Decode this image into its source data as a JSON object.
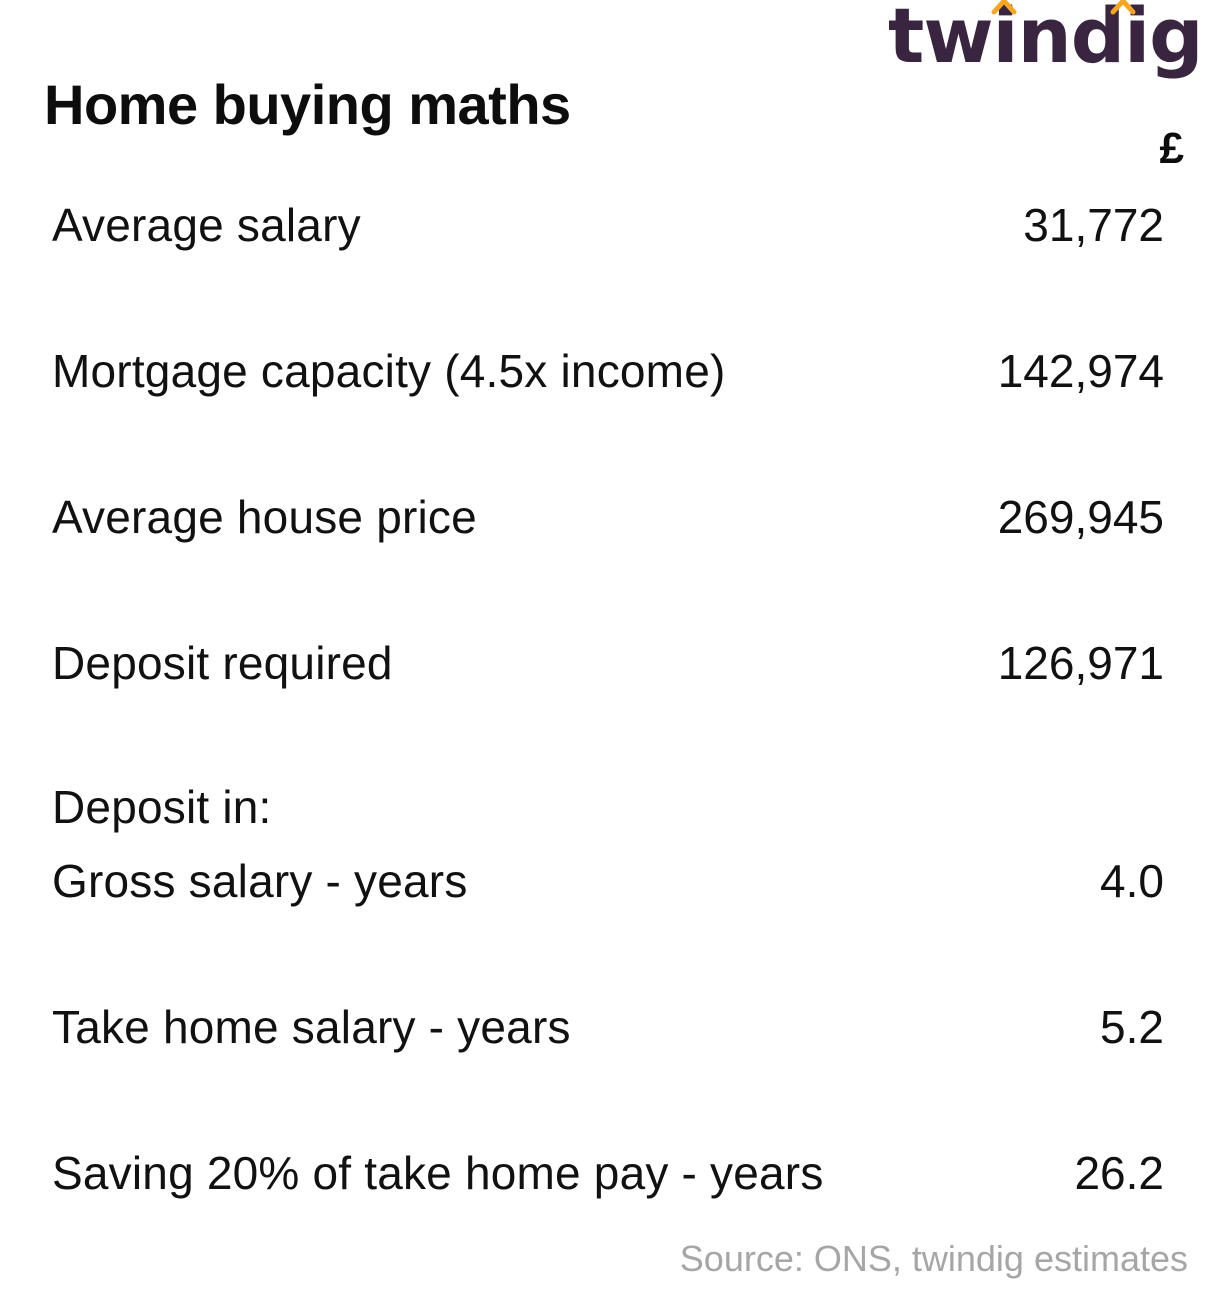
{
  "logo": {
    "text": "twindig",
    "text_color": "#3a2540",
    "accent_color": "#f5a623"
  },
  "title": "Home buying maths",
  "currency_header": "£",
  "rows": [
    {
      "label": "Average salary",
      "value": "31,772"
    },
    {
      "label": "Mortgage capacity (4.5x income)",
      "value": "142,974"
    },
    {
      "label": "Average house price",
      "value": "269,945"
    },
    {
      "label": "Deposit required",
      "value": "126,971"
    },
    {
      "label": "Deposit in:",
      "value": ""
    },
    {
      "label": "Gross salary - years",
      "value": "4.0"
    },
    {
      "label": "Take home salary - years",
      "value": "5.2"
    },
    {
      "label": "Saving 20% of take home pay - years",
      "value": "26.2"
    }
  ],
  "source": "Source: ONS, twindig estimates"
}
